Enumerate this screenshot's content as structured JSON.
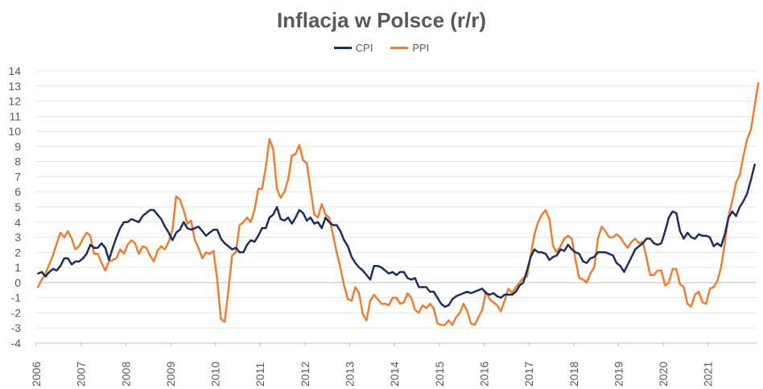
{
  "chart_data": {
    "type": "line",
    "title": "Inflacja w Polsce (r/r)",
    "xlabel": "",
    "ylabel": "",
    "ylim": [
      -4,
      14
    ],
    "y_ticks": [
      "-4",
      "-3",
      "-2",
      "-1",
      "0",
      "1",
      "2",
      "3",
      "4",
      "5",
      "6",
      "7",
      "8",
      "9",
      "10",
      "11",
      "12",
      "13",
      "14"
    ],
    "x_tick_labels": [
      "2006",
      "2007",
      "2008",
      "2009",
      "2010",
      "2011",
      "2012",
      "2013",
      "2014",
      "2015",
      "2016",
      "2017",
      "2018",
      "2019",
      "2020",
      "2021"
    ],
    "grid": "horizontal",
    "legend_position": "top",
    "x_start_year": 2006,
    "series": [
      {
        "name": "CPI",
        "color": "#1f2d5c",
        "values": [
          0.6,
          0.7,
          0.4,
          0.7,
          0.9,
          0.8,
          1.1,
          1.6,
          1.6,
          1.2,
          1.4,
          1.4,
          1.6,
          1.9,
          2.5,
          2.3,
          2.3,
          2.6,
          2.3,
          1.5,
          2.3,
          3.0,
          3.6,
          4.0,
          4.0,
          4.2,
          4.1,
          4.0,
          4.4,
          4.6,
          4.8,
          4.8,
          4.5,
          4.2,
          3.7,
          3.3,
          2.8,
          3.3,
          3.5,
          4.0,
          3.6,
          3.5,
          3.6,
          3.7,
          3.4,
          3.1,
          3.3,
          3.5,
          3.5,
          2.9,
          2.6,
          2.4,
          2.2,
          2.3,
          2.0,
          2.0,
          2.5,
          2.8,
          2.7,
          3.1,
          3.6,
          3.6,
          4.3,
          4.5,
          5.0,
          4.2,
          4.1,
          4.3,
          3.9,
          4.3,
          4.8,
          4.6,
          4.1,
          4.3,
          3.9,
          4.0,
          3.6,
          4.3,
          4.0,
          3.8,
          3.8,
          3.4,
          2.8,
          2.4,
          1.7,
          1.3,
          1.0,
          0.8,
          0.5,
          0.2,
          1.1,
          1.1,
          1.0,
          0.8,
          0.6,
          0.7,
          0.5,
          0.7,
          0.7,
          0.3,
          0.2,
          0.3,
          -0.3,
          -0.3,
          -0.3,
          -0.6,
          -0.6,
          -1.0,
          -1.4,
          -1.6,
          -1.5,
          -1.1,
          -0.9,
          -0.8,
          -0.7,
          -0.6,
          -0.7,
          -0.6,
          -0.5,
          -0.4,
          -0.7,
          -0.8,
          -0.7,
          -0.9,
          -1.0,
          -0.8,
          -0.8,
          -0.8,
          -0.6,
          -0.2,
          0.0,
          0.8,
          1.7,
          2.2,
          2.0,
          2.0,
          1.9,
          1.5,
          1.7,
          1.8,
          2.2,
          2.1,
          2.5,
          2.2,
          2.0,
          1.9,
          1.4,
          1.3,
          1.6,
          1.7,
          2.0,
          2.0,
          2.0,
          1.9,
          1.8,
          1.3,
          1.1,
          0.7,
          1.2,
          1.7,
          2.2,
          2.4,
          2.6,
          2.9,
          2.9,
          2.6,
          2.5,
          2.6,
          3.4,
          4.3,
          4.7,
          4.6,
          3.4,
          2.9,
          3.3,
          3.0,
          2.9,
          3.2,
          3.1,
          3.1,
          3.0,
          2.4,
          2.6,
          2.4,
          3.2,
          4.3,
          4.7,
          4.4,
          5.0,
          5.4,
          5.9,
          6.8,
          7.8
        ]
      },
      {
        "name": "PPI",
        "color": "#ed7d31",
        "values": [
          -0.3,
          0.2,
          0.6,
          1.2,
          1.8,
          2.6,
          3.3,
          3.0,
          3.4,
          2.9,
          2.2,
          2.4,
          2.9,
          3.3,
          3.1,
          1.9,
          1.9,
          1.3,
          0.8,
          1.4,
          1.5,
          1.6,
          2.2,
          1.9,
          2.5,
          2.8,
          2.6,
          1.9,
          2.4,
          2.3,
          1.8,
          1.4,
          2.1,
          2.4,
          2.2,
          2.7,
          3.5,
          5.7,
          5.5,
          4.8,
          3.9,
          4.1,
          2.8,
          2.3,
          1.6,
          2.0,
          1.9,
          2.1,
          0.2,
          -2.4,
          -2.6,
          -0.5,
          1.8,
          2.0,
          3.8,
          4.0,
          4.3,
          4.0,
          4.8,
          6.2,
          6.2,
          7.6,
          9.5,
          8.8,
          6.2,
          5.6,
          6.0,
          6.8,
          8.4,
          8.5,
          9.1,
          8.1,
          7.9,
          6.2,
          4.5,
          4.3,
          5.2,
          4.5,
          4.3,
          3.2,
          2.0,
          1.0,
          -0.2,
          -1.1,
          -1.2,
          -0.3,
          -0.7,
          -2.1,
          -2.5,
          -1.2,
          -0.8,
          -1.1,
          -1.4,
          -1.4,
          -1.5,
          -1.0,
          -1.0,
          -1.4,
          -1.3,
          -0.7,
          -1.0,
          -1.8,
          -2.0,
          -1.5,
          -1.7,
          -1.4,
          -1.7,
          -2.7,
          -2.8,
          -2.8,
          -2.5,
          -2.8,
          -2.3,
          -2.0,
          -1.4,
          -1.9,
          -2.7,
          -2.8,
          -2.3,
          -1.8,
          -0.6,
          -1.1,
          -1.3,
          -1.5,
          -1.9,
          -1.2,
          -0.4,
          -0.7,
          -0.3,
          0.0,
          0.3,
          0.4,
          1.8,
          3.2,
          4.0,
          4.5,
          4.8,
          4.2,
          2.4,
          2.0,
          2.4,
          2.9,
          3.1,
          2.9,
          1.5,
          0.3,
          0.2,
          0.0,
          0.6,
          1.0,
          2.9,
          3.7,
          3.4,
          3.0,
          3.0,
          3.2,
          3.0,
          2.6,
          2.3,
          2.7,
          2.9,
          2.6,
          2.7,
          1.7,
          0.5,
          0.5,
          0.8,
          0.8,
          -0.2,
          0.0,
          0.9,
          0.9,
          -0.1,
          -0.3,
          -1.4,
          -1.6,
          -0.8,
          -0.6,
          -1.3,
          -1.4,
          -0.4,
          -0.3,
          0.1,
          1.0,
          2.6,
          4.4,
          5.4,
          6.6,
          7.1,
          8.4,
          9.5,
          10.1,
          11.7,
          13.2
        ]
      }
    ]
  }
}
